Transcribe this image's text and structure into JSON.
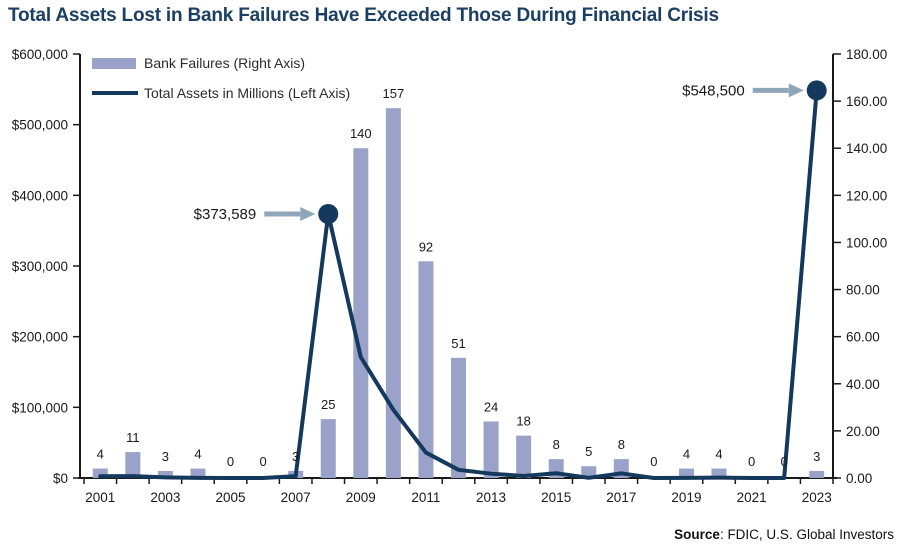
{
  "title": "Total Assets Lost in Bank Failures Have Exceeded Those During Financial Crisis",
  "legend": [
    {
      "label": "Bank Failures (Right Axis)",
      "swatch": "bar-swatch",
      "color": "#9aa2ca"
    },
    {
      "label": "Total Assets in Millions (Left Axis)",
      "swatch": "line-swatch",
      "color": "#14395d"
    }
  ],
  "source": {
    "label": "Source",
    "rest": ": FDIC, U.S. Global Investors"
  },
  "colors": {
    "bar": "#9aa2ca",
    "line": "#14395d",
    "title": "#1b3f63",
    "arrow": "#8fa6ba",
    "axis": "#1a1a1a"
  },
  "chart_data": {
    "type": "combo",
    "categories": [
      "2001",
      "2002",
      "2003",
      "2004",
      "2005",
      "2006",
      "2007",
      "2008",
      "2009",
      "2010",
      "2011",
      "2012",
      "2013",
      "2014",
      "2015",
      "2016",
      "2017",
      "2018",
      "2019",
      "2020",
      "2021",
      "2022",
      "2023"
    ],
    "x_labeled_years": [
      "2001",
      "2003",
      "2005",
      "2007",
      "2009",
      "2011",
      "2013",
      "2015",
      "2017",
      "2019",
      "2021",
      "2023"
    ],
    "series": [
      {
        "name": "Bank Failures (Right Axis)",
        "type": "bar",
        "axis": "right",
        "values": [
          4,
          11,
          3,
          4,
          0,
          0,
          3,
          25,
          140,
          157,
          92,
          51,
          24,
          18,
          8,
          5,
          8,
          0,
          4,
          4,
          0,
          0,
          3
        ]
      },
      {
        "name": "Total Assets in Millions (Left Axis)",
        "type": "line",
        "axis": "left",
        "values": [
          2400,
          2700,
          950,
          170,
          0,
          0,
          2600,
          373589,
          170900,
          96500,
          36000,
          11600,
          6100,
          2900,
          6700,
          280,
          6500,
          0,
          210,
          460,
          0,
          0,
          548500
        ]
      }
    ],
    "left_axis": {
      "min": 0,
      "max": 600000,
      "step": 100000,
      "tick_labels": [
        "$600,000",
        "$500,000",
        "$400,000",
        "$300,000",
        "$200,000",
        "$100,000",
        "$0"
      ]
    },
    "right_axis": {
      "min": 0,
      "max": 180,
      "step": 20,
      "tick_labels": [
        "180.00",
        "160.00",
        "140.00",
        "120.00",
        "100.00",
        "80.00",
        "60.00",
        "40.00",
        "20.00",
        "0.00"
      ]
    },
    "annotations": [
      {
        "text": "$373,589",
        "year": "2008",
        "year_index": 7,
        "value": 373589
      },
      {
        "text": "$548,500",
        "year": "2023",
        "year_index": 22,
        "value": 548500
      }
    ],
    "grid": false,
    "legend_position": "top-left-inside"
  }
}
